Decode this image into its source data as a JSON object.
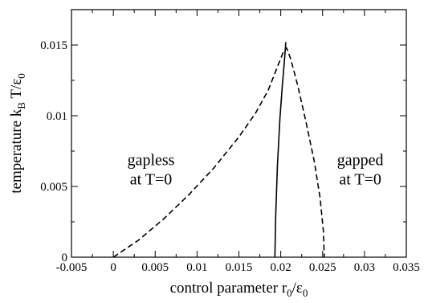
{
  "chart_data": {
    "type": "line",
    "xlim": [
      -0.005,
      0.035
    ],
    "ylim": [
      0,
      0.0175
    ],
    "xticks": [
      "-0.005",
      "0",
      "0.005",
      "0.01",
      "0.015",
      "0.02",
      "0.025",
      "0.03",
      "0.035"
    ],
    "xtick_values": [
      -0.005,
      0,
      0.005,
      0.01,
      0.015,
      0.02,
      0.025,
      0.03,
      0.035
    ],
    "yticks": [
      "0",
      "0.005",
      "0.01",
      "0.015"
    ],
    "ytick_values": [
      0,
      0.005,
      0.01,
      0.015
    ],
    "xlabel": {
      "main": "control parameter r",
      "sub": "0",
      "tail": "/ε",
      "sub2": "0"
    },
    "ylabel": {
      "main": "temperature k",
      "sub": "B",
      "tail": " T/ε",
      "sub2": "0"
    },
    "series": [
      {
        "style": "dashed",
        "x": [
          0.0,
          0.003,
          0.006,
          0.009,
          0.012,
          0.015,
          0.017,
          0.0185,
          0.0195,
          0.0203,
          0.0207,
          0.0212,
          0.022,
          0.023,
          0.024,
          0.0247,
          0.0251,
          0.0252
        ],
        "y": [
          0.0,
          0.0012,
          0.0027,
          0.0044,
          0.0063,
          0.0085,
          0.0102,
          0.0118,
          0.0133,
          0.0145,
          0.0148,
          0.014,
          0.0122,
          0.0096,
          0.0068,
          0.0042,
          0.0018,
          0.0
        ]
      },
      {
        "style": "solid",
        "x": [
          0.0193,
          0.0194,
          0.0196,
          0.0199,
          0.0202,
          0.0205,
          0.0206
        ],
        "y": [
          0.0,
          0.003,
          0.0065,
          0.0098,
          0.0122,
          0.0143,
          0.0152
        ]
      }
    ],
    "annotations": [
      {
        "lines": [
          "gapless",
          "at T=0"
        ],
        "x": 0.0045,
        "y": 0.0065
      },
      {
        "lines": [
          "gapped",
          "at T=0"
        ],
        "x": 0.0295,
        "y": 0.0065
      }
    ],
    "grid": false,
    "legend": "none",
    "colors": {
      "line": "#000000",
      "axis": "#000000",
      "background": "#ffffff"
    }
  }
}
